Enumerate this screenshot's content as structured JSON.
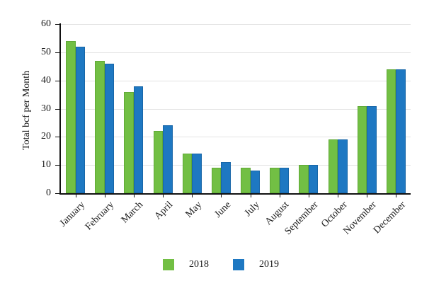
{
  "chart_data": {
    "type": "bar",
    "title": "",
    "xlabel": "",
    "ylabel": "Total bcf per Month",
    "categories": [
      "January",
      "February",
      "March",
      "April",
      "May",
      "June",
      "July",
      "August",
      "September",
      "October",
      "November",
      "December"
    ],
    "series": [
      {
        "name": "2018",
        "color": "#72bf44",
        "edge_color": "#60a936",
        "values": [
          54,
          47,
          36,
          22,
          14,
          9,
          9,
          9,
          10,
          19,
          31,
          44
        ]
      },
      {
        "name": "2019",
        "color": "#1e78c2",
        "edge_color": "#1766a8",
        "values": [
          52,
          46,
          38,
          24,
          14,
          11,
          8,
          9,
          10,
          19,
          31,
          44
        ]
      }
    ],
    "ylim": [
      0,
      60
    ],
    "yticks": [
      0,
      10,
      20,
      30,
      40,
      50,
      60
    ],
    "grid": "horizontal",
    "gridline_color": "#e3e3e3",
    "axis_color": "#111111",
    "legend_position": "bottom",
    "legend_labels": [
      "2018",
      "2019"
    ]
  }
}
